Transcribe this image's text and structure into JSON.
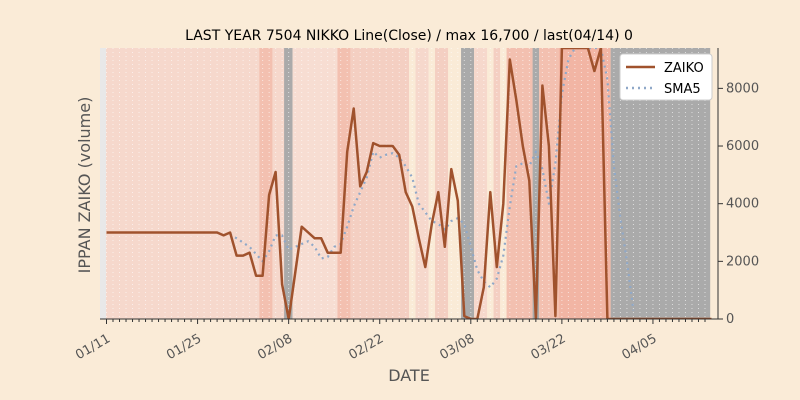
{
  "chart_data": {
    "type": "line",
    "title": "LAST YEAR 7504 NIKKO Line(Close) / max 16,700 / last(04/14) 0",
    "xlabel": "DATE",
    "ylabel": "IPPAN ZAIKO (volume)",
    "x_start": "01/11",
    "x_end": "04/14",
    "xlim": [
      -1,
      94
    ],
    "ylim": [
      0,
      9400
    ],
    "x_tick_labels": [
      {
        "label": "01/11",
        "day": 0
      },
      {
        "label": "01/25",
        "day": 14
      },
      {
        "label": "02/08",
        "day": 28
      },
      {
        "label": "02/22",
        "day": 42
      },
      {
        "label": "03/08",
        "day": 56
      },
      {
        "label": "03/22",
        "day": 70
      },
      {
        "label": "04/05",
        "day": 84
      }
    ],
    "y_ticks": [
      0,
      2000,
      4000,
      6000,
      8000
    ],
    "legend_position": "top-right",
    "series": [
      {
        "name": "ZAIKO",
        "color": "#a0522d",
        "style": "solid",
        "points": [
          [
            0,
            3000
          ],
          [
            17,
            3000
          ],
          [
            18,
            2900
          ],
          [
            19,
            3000
          ],
          [
            20,
            2200
          ],
          [
            21,
            2200
          ],
          [
            22,
            2300
          ],
          [
            23,
            1500
          ],
          [
            24,
            1500
          ],
          [
            25,
            4300
          ],
          [
            26,
            5100
          ],
          [
            27,
            1200
          ],
          [
            28,
            0
          ],
          [
            29,
            1600
          ],
          [
            30,
            3200
          ],
          [
            31,
            3000
          ],
          [
            32,
            2800
          ],
          [
            33,
            2800
          ],
          [
            34,
            2300
          ],
          [
            35,
            2300
          ],
          [
            36,
            2300
          ],
          [
            37,
            5800
          ],
          [
            38,
            7300
          ],
          [
            39,
            4600
          ],
          [
            40,
            5100
          ],
          [
            41,
            6100
          ],
          [
            42,
            6000
          ],
          [
            43,
            6000
          ],
          [
            44,
            6000
          ],
          [
            45,
            5700
          ],
          [
            46,
            4400
          ],
          [
            47,
            3900
          ],
          [
            48,
            2800
          ],
          [
            49,
            1800
          ],
          [
            50,
            3300
          ],
          [
            51,
            4400
          ],
          [
            52,
            2500
          ],
          [
            53,
            5200
          ],
          [
            54,
            4100
          ],
          [
            55,
            100
          ],
          [
            56,
            0
          ],
          [
            57,
            0
          ],
          [
            58,
            1100
          ],
          [
            59,
            4400
          ],
          [
            60,
            1800
          ],
          [
            61,
            4000
          ],
          [
            62,
            9000
          ],
          [
            63,
            7600
          ],
          [
            64,
            6000
          ],
          [
            65,
            4800
          ],
          [
            66,
            0
          ],
          [
            67,
            8100
          ],
          [
            68,
            6000
          ],
          [
            69,
            100
          ],
          [
            70,
            9400
          ],
          [
            71,
            9400
          ],
          [
            72,
            9400
          ],
          [
            73,
            9400
          ],
          [
            74,
            9400
          ],
          [
            75,
            8600
          ],
          [
            76,
            9400
          ],
          [
            77,
            0
          ],
          [
            93,
            0
          ]
        ]
      },
      {
        "name": "SMA5",
        "color": "#8fa8c8",
        "style": "dotted",
        "points": [
          [
            19,
            2950
          ],
          [
            20,
            2800
          ],
          [
            21,
            2650
          ],
          [
            22,
            2500
          ],
          [
            23,
            2250
          ],
          [
            24,
            2000
          ],
          [
            25,
            2350
          ],
          [
            26,
            2900
          ],
          [
            27,
            2900
          ],
          [
            28,
            2400
          ],
          [
            29,
            2500
          ],
          [
            30,
            2600
          ],
          [
            31,
            2700
          ],
          [
            32,
            2500
          ],
          [
            33,
            2100
          ],
          [
            34,
            2150
          ],
          [
            35,
            2500
          ],
          [
            36,
            2600
          ],
          [
            37,
            3200
          ],
          [
            38,
            3900
          ],
          [
            39,
            4400
          ],
          [
            40,
            4900
          ],
          [
            41,
            5800
          ],
          [
            42,
            5600
          ],
          [
            43,
            5700
          ],
          [
            44,
            5750
          ],
          [
            45,
            5600
          ],
          [
            46,
            5300
          ],
          [
            47,
            4900
          ],
          [
            48,
            4000
          ],
          [
            49,
            3700
          ],
          [
            50,
            3400
          ],
          [
            51,
            3300
          ],
          [
            52,
            3100
          ],
          [
            53,
            3400
          ],
          [
            54,
            3500
          ],
          [
            55,
            3300
          ],
          [
            56,
            2500
          ],
          [
            57,
            1700
          ],
          [
            58,
            1300
          ],
          [
            59,
            1100
          ],
          [
            60,
            1400
          ],
          [
            61,
            2200
          ],
          [
            62,
            3900
          ],
          [
            63,
            5300
          ],
          [
            64,
            5400
          ],
          [
            65,
            5300
          ],
          [
            66,
            5800
          ],
          [
            67,
            5200
          ],
          [
            68,
            4000
          ],
          [
            69,
            5400
          ],
          [
            70,
            7800
          ],
          [
            71,
            9000
          ],
          [
            72,
            9400
          ],
          [
            73,
            9400
          ],
          [
            74,
            9400
          ],
          [
            75,
            9400
          ],
          [
            76,
            9400
          ],
          [
            77,
            8300
          ],
          [
            78,
            5300
          ],
          [
            79,
            3500
          ],
          [
            80,
            2000
          ],
          [
            81,
            300
          ]
        ]
      }
    ]
  }
}
